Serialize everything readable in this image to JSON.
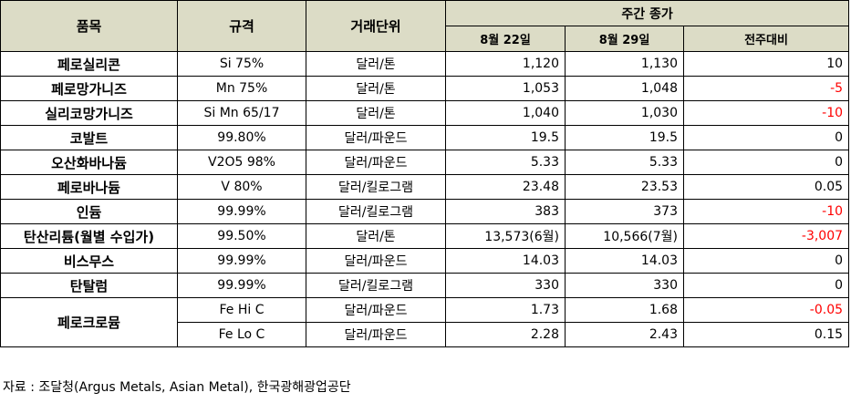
{
  "header": {
    "item": "품목",
    "spec": "규격",
    "unit": "거래단위",
    "group": "주간 종가",
    "week1": "8월 22일",
    "week2": "8월 29일",
    "change": "전주대비"
  },
  "rows": [
    {
      "item": "페로실리콘",
      "spec": "Si 75%",
      "unit": "달러/톤",
      "w1": "1,120",
      "w2": "1,130",
      "change": "10",
      "negative": false
    },
    {
      "item": "페로망가니즈",
      "spec": "Mn 75%",
      "unit": "달러/톤",
      "w1": "1,053",
      "w2": "1,048",
      "change": "-5",
      "negative": true
    },
    {
      "item": "실리코망가니즈",
      "spec": "Si Mn 65/17",
      "unit": "달러/톤",
      "w1": "1,040",
      "w2": "1,030",
      "change": "-10",
      "negative": true
    },
    {
      "item": "코발트",
      "spec": "99.80%",
      "unit": "달러/파운드",
      "w1": "19.5",
      "w2": "19.5",
      "change": "0",
      "negative": false
    },
    {
      "item": "오산화바나듐",
      "spec": "V2O5 98%",
      "unit": "달러/파운드",
      "w1": "5.33",
      "w2": "5.33",
      "change": "0",
      "negative": false
    },
    {
      "item": "페로바나듐",
      "spec": "V 80%",
      "unit": "달러/킬로그램",
      "w1": "23.48",
      "w2": "23.53",
      "change": "0.05",
      "negative": false
    },
    {
      "item": "인듐",
      "spec": "99.99%",
      "unit": "달러/킬로그램",
      "w1": "383",
      "w2": "373",
      "change": "-10",
      "negative": true
    },
    {
      "item": "탄산리튬(월별 수입가)",
      "spec": "99.50%",
      "unit": "달러/톤",
      "w1": "13,573(6월)",
      "w2": "10,566(7월)",
      "change": "-3,007",
      "negative": true
    },
    {
      "item": "비스무스",
      "spec": "99.99%",
      "unit": "달러/파운드",
      "w1": "14.03",
      "w2": "14.03",
      "change": "0",
      "negative": false
    },
    {
      "item": "탄탈럼",
      "spec": "99.99%",
      "unit": "달러/킬로그램",
      "w1": "330",
      "w2": "330",
      "change": "0",
      "negative": false
    }
  ],
  "ferrochrome": {
    "item": "페로크로뮴",
    "sub": [
      {
        "spec": "Fe Hi C",
        "unit": "달러/파운드",
        "w1": "1.73",
        "w2": "1.68",
        "change": "-0.05",
        "negative": true
      },
      {
        "spec": "Fe Lo C",
        "unit": "달러/파운드",
        "w1": "2.28",
        "w2": "2.43",
        "change": "0.15",
        "negative": false
      }
    ]
  },
  "source": "자료 : 조달청(Argus Metals, Asian Metal), 한국광해광업공단",
  "colors": {
    "header_bg": "#dcdcc6",
    "negative": "#ff0000"
  }
}
